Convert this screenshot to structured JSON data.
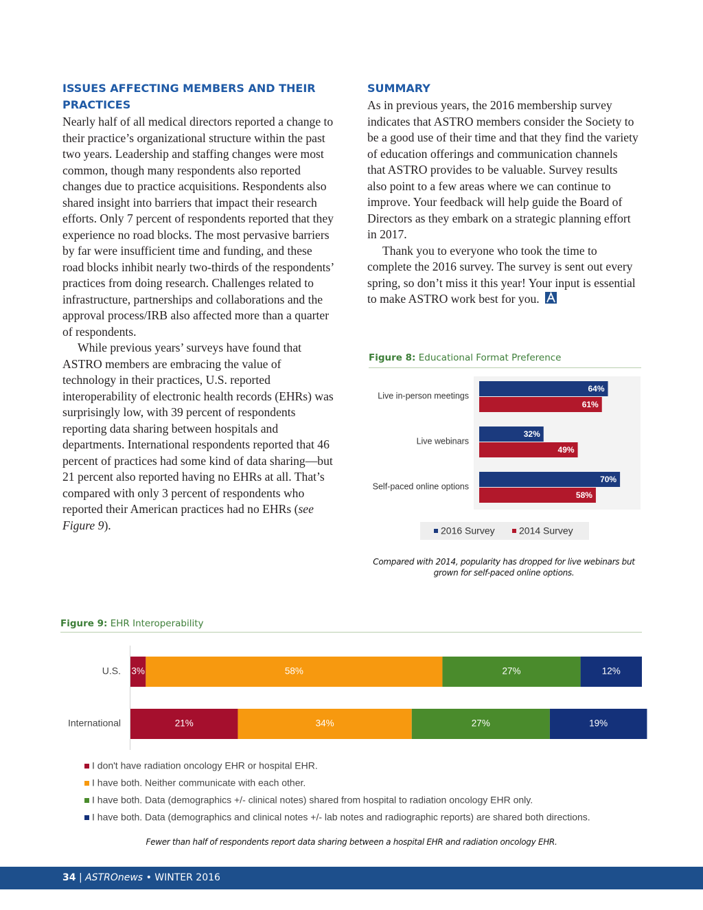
{
  "left_column": {
    "heading": "ISSUES AFFECTING MEMBERS AND THEIR PRACTICES",
    "paragraphs": [
      [
        "Nearly half of all medical directors reported a change to their practice’s organizational structure within the past two years. Leadership and staffing changes were most common, though many respondents also reported changes due to practice acquisitions. Respondents also shared insight into barriers that impact their research efforts. Only 7 percent of respondents reported that they experience no road blocks. The most pervasive barriers by far were insufficient time and funding, and these road blocks inhibit nearly two-thirds of the respondents’ practices from doing research. Challenges related to infrastructure, partnerships and collaborations and the approval process/IRB also affected more than a quarter of respondents."
      ],
      [
        "While previous years’ surveys have found that ASTRO members are embracing the value of technology in their practices, U.S. reported interoperability of electronic health records (EHRs) was surprisingly low, with 39 percent of respondents reporting data sharing between hospitals and departments. International respondents reported that 46 percent of practices had some kind of data sharing—but 21 percent also reported having no EHRs at all. That’s compared with only 3 percent of respondents who reported their American practices had no EHRs (",
        "see Figure 9",
        ")."
      ]
    ]
  },
  "right_column": {
    "heading": "SUMMARY",
    "paragraphs": [
      [
        "As in previous years, the 2016 membership survey indicates that ASTRO members consider the Society to be a good use of their time and that they find the variety of education offerings and communication channels that ASTRO provides to be valuable. Survey results also point to a few areas where we can continue to improve. Your feedback will help guide the Board of Directors as they embark on a strategic planning effort in 2017."
      ],
      [
        "Thank you to everyone who took the time to complete the 2016 survey. The survey is sent out every spring, so don’t miss it this year! Your input is essential to make ASTRO work best for you."
      ]
    ]
  },
  "chart_data": [
    {
      "type": "grouped_hbar",
      "label": "Figure 8:",
      "title": "Educational Format Preference",
      "categories": [
        "Live in-person meetings",
        "Live webinars",
        "Self-paced online options"
      ],
      "xlim": [
        0,
        100
      ],
      "series": [
        {
          "name": "2016 Survey",
          "color": "#1b3a7e",
          "values": [
            64,
            32,
            70
          ],
          "value_labels": [
            "64%",
            "32%",
            "70%"
          ]
        },
        {
          "name": "2014 Survey",
          "color": "#b2182b",
          "values": [
            61,
            49,
            58
          ],
          "value_labels": [
            "61%",
            "49%",
            "58%"
          ]
        }
      ],
      "caption": "Compared with 2014, popularity has dropped for live webinars but grown for self-paced online options."
    },
    {
      "type": "stacked_hbar",
      "label": "Figure 9:",
      "title": "EHR Interoperability",
      "categories": [
        "U.S.",
        "International"
      ],
      "xlim": [
        0,
        100
      ],
      "series": [
        {
          "name": "I don't have radiation oncology EHR or hospital EHR.",
          "color": "#a50f2d",
          "values": [
            3,
            21
          ],
          "value_labels": [
            "3%",
            "21%"
          ]
        },
        {
          "name": "I have both. Neither communicate with each other.",
          "color": "#f7990f",
          "values": [
            58,
            34
          ],
          "value_labels": [
            "58%",
            "34%"
          ]
        },
        {
          "name": "I have both. Data (demographics +/- clinical notes) shared from hospital to radiation oncology EHR only.",
          "color": "#4a8b2c",
          "values": [
            27,
            27
          ],
          "value_labels": [
            "27%",
            "27%"
          ]
        },
        {
          "name": "I have both. Data (demographics and clinical notes +/- lab notes and radiographic reports) are shared both directions.",
          "color": "#14317a",
          "values": [
            12,
            19
          ],
          "value_labels": [
            "12%",
            "19%"
          ]
        }
      ],
      "caption": "Fewer than half of respondents report data sharing between a hospital EHR and radiation oncology EHR."
    }
  ],
  "footer": {
    "page": "34",
    "separator": "|",
    "publication": "ASTROnews",
    "bullet": "•",
    "issue": "WINTER 2016"
  }
}
